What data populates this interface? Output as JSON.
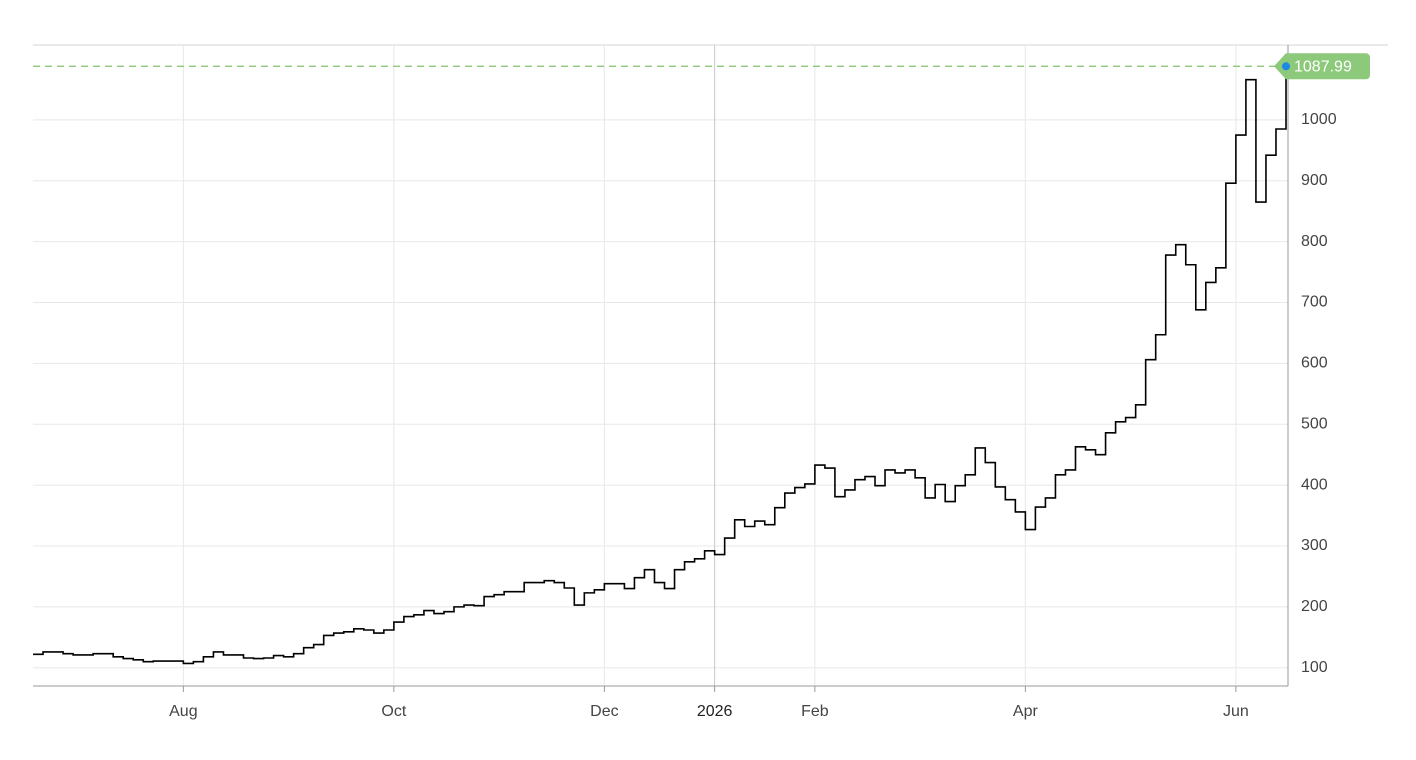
{
  "chart_data": {
    "type": "line",
    "color": "#000000",
    "last_value_color": "#8cc97a",
    "grid": true,
    "categories": [
      null,
      null,
      null,
      null,
      null,
      null,
      null,
      null,
      null,
      null,
      null,
      null,
      null,
      null,
      null,
      "Aug",
      null,
      null,
      null,
      null,
      null,
      null,
      null,
      null,
      null,
      null,
      null,
      null,
      null,
      null,
      null,
      null,
      null,
      null,
      null,
      null,
      "Oct",
      null,
      null,
      null,
      null,
      null,
      null,
      null,
      null,
      null,
      null,
      null,
      null,
      null,
      null,
      null,
      null,
      null,
      null,
      null,
      null,
      "Dec",
      null,
      null,
      null,
      null,
      null,
      null,
      null,
      null,
      null,
      null,
      "2026",
      null,
      null,
      null,
      null,
      null,
      null,
      null,
      null,
      null,
      "Feb",
      null,
      null,
      null,
      null,
      null,
      null,
      null,
      null,
      null,
      null,
      null,
      null,
      null,
      null,
      null,
      null,
      null,
      null,
      null,
      null,
      "Apr",
      null,
      null,
      null,
      null,
      null,
      null,
      null,
      null,
      null,
      null,
      null,
      null,
      null,
      null,
      null,
      null,
      null,
      null,
      null,
      null,
      "Jun",
      null,
      null,
      null,
      null,
      null
    ],
    "values": [
      122,
      126,
      126,
      123,
      121,
      121,
      123,
      123,
      118,
      115,
      113,
      110,
      111,
      111,
      111,
      107,
      110,
      118,
      126,
      121,
      121,
      116,
      115,
      116,
      120,
      118,
      123,
      133,
      138,
      153,
      157,
      159,
      164,
      162,
      157,
      162,
      175,
      184,
      187,
      194,
      189,
      192,
      200,
      203,
      202,
      217,
      220,
      225,
      225,
      240,
      240,
      243,
      240,
      231,
      203,
      223,
      228,
      238,
      238,
      230,
      248,
      261,
      240,
      230,
      261,
      274,
      279,
      292,
      286,
      313,
      343,
      332,
      341,
      335,
      363,
      387,
      396,
      402,
      433,
      428,
      381,
      392,
      409,
      414,
      399,
      425,
      420,
      425,
      412,
      379,
      401,
      373,
      399,
      417,
      461,
      437,
      397,
      376,
      356,
      327,
      364,
      379,
      417,
      425,
      463,
      458,
      450,
      486,
      504,
      511,
      532,
      606,
      647,
      778,
      795,
      762,
      688,
      733,
      757,
      896,
      975,
      1066,
      865,
      942,
      985,
      1087.99
    ],
    "ylim": [
      70,
      1123
    ],
    "yticks": [
      100,
      200,
      300,
      400,
      500,
      600,
      700,
      800,
      900,
      1000
    ]
  }
}
